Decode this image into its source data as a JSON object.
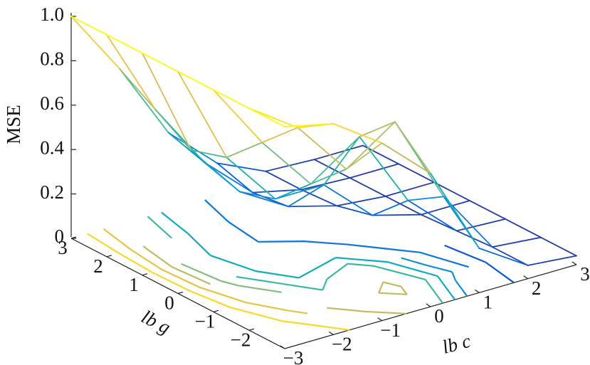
{
  "chart_data": {
    "type": "surface",
    "zlabel": "MSE",
    "xlabel": "lb c",
    "ylabel": "lb g",
    "x": [
      -3,
      -2,
      -1,
      0,
      1,
      2,
      3
    ],
    "y": [
      3,
      2,
      1,
      0,
      -1,
      -2,
      -3
    ],
    "z": [
      [
        1.0,
        0.7,
        0.35,
        0.15,
        0.05,
        0.04,
        0.04
      ],
      [
        1.0,
        0.6,
        0.3,
        0.1,
        0.05,
        0.04,
        0.04
      ],
      [
        1.0,
        0.5,
        0.25,
        0.12,
        0.06,
        0.04,
        0.04
      ],
      [
        1.0,
        0.55,
        0.3,
        0.3,
        0.1,
        0.04,
        0.04
      ],
      [
        1.0,
        0.7,
        0.45,
        0.6,
        0.25,
        0.05,
        0.04
      ],
      [
        1.0,
        0.85,
        0.6,
        0.75,
        0.35,
        0.06,
        0.04
      ],
      [
        1.0,
        0.95,
        0.8,
        0.6,
        0.2,
        0.06,
        0.04
      ]
    ],
    "xlim": [
      -3,
      3
    ],
    "ylim": [
      -3,
      3
    ],
    "zlim": [
      0,
      1
    ],
    "xticks": [
      {
        "value": -3,
        "label": "−3"
      },
      {
        "value": -2,
        "label": "−2"
      },
      {
        "value": -1,
        "label": "−1"
      },
      0,
      1,
      2,
      3
    ],
    "yticks": [
      3,
      2,
      1,
      0,
      {
        "value": -1,
        "label": "−1"
      },
      {
        "value": -2,
        "label": "−2"
      }
    ],
    "zticks": [
      0,
      0.2,
      0.4,
      0.6,
      0.8,
      {
        "value": 1,
        "label": "1.0"
      }
    ],
    "contour_levels": [
      0.1,
      0.2,
      0.3,
      0.4,
      0.5,
      0.6,
      0.7,
      0.8,
      0.9
    ],
    "colormap": [
      "#352a87",
      "#0363e1",
      "#1485d4",
      "#06a7c6",
      "#38b99e",
      "#92bf73",
      "#d9ba56",
      "#fcce2e",
      "#f9fb0e"
    ]
  }
}
